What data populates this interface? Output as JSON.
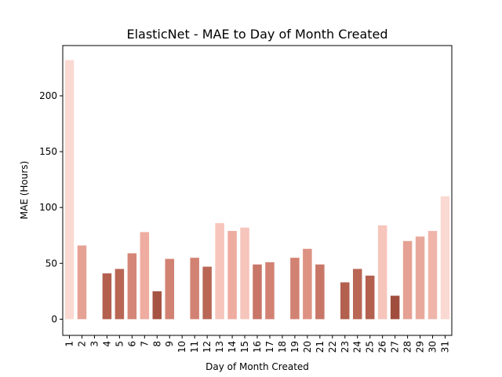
{
  "chart_data": {
    "type": "bar",
    "title": "ElasticNet - MAE to Day of Month Created",
    "xlabel": "Day of Month Created",
    "ylabel": "MAE (Hours)",
    "categories": [
      "1",
      "2",
      "3",
      "4",
      "5",
      "6",
      "7",
      "8",
      "9",
      "10",
      "11",
      "12",
      "13",
      "14",
      "15",
      "16",
      "17",
      "18",
      "19",
      "20",
      "21",
      "22",
      "23",
      "24",
      "25",
      "26",
      "27",
      "28",
      "29",
      "30",
      "31"
    ],
    "values": [
      232,
      66,
      null,
      41,
      45,
      59,
      78,
      25,
      54,
      null,
      55,
      47,
      86,
      79,
      82,
      49,
      51,
      null,
      55,
      63,
      49,
      null,
      33,
      45,
      39,
      84,
      21,
      70,
      74,
      79,
      110
    ],
    "bar_colors": [
      "#fad9d2",
      "#e5a193",
      "#ffffff",
      "#b3604f",
      "#b96655",
      "#d58677",
      "#efaca0",
      "#a65444",
      "#d28272",
      "#ffffff",
      "#d28272",
      "#b96655",
      "#f6c5bc",
      "#efaca0",
      "#f6c5bc",
      "#c87668",
      "#d28272",
      "#ffffff",
      "#d28272",
      "#dd9282",
      "#c87668",
      "#ffffff",
      "#b3604f",
      "#b96655",
      "#b3604f",
      "#f6c5bc",
      "#a04d3e",
      "#e5a193",
      "#e8a99c",
      "#efb5aa",
      "#fad9d2"
    ],
    "yticks": [
      0,
      50,
      100,
      150,
      200
    ],
    "ylim": [
      -14.5,
      245
    ],
    "grid": false,
    "legend": "none"
  }
}
